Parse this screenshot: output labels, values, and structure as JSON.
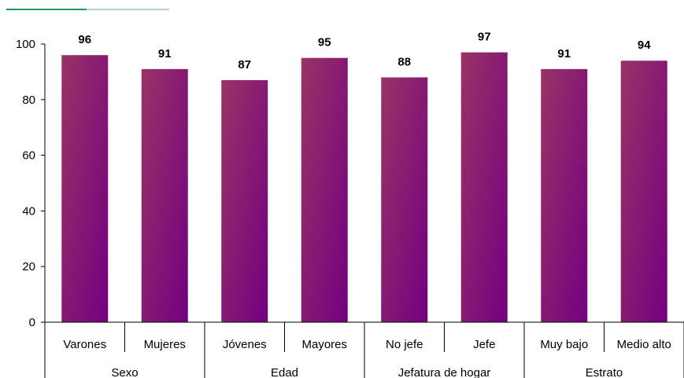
{
  "chart_data": {
    "type": "bar",
    "categories": [
      "Varones",
      "Mujeres",
      "Jóvenes",
      "Mayores",
      "No jefe",
      "Jefe",
      "Muy bajo",
      "Medio alto"
    ],
    "groups": [
      {
        "label": "Sexo",
        "count": 2
      },
      {
        "label": "Edad",
        "count": 2
      },
      {
        "label": "Jefatura de hogar",
        "count": 2
      },
      {
        "label": "Estrato",
        "count": 2
      }
    ],
    "values": [
      96,
      91,
      87,
      95,
      88,
      97,
      91,
      94
    ],
    "data_labels": [
      "96",
      "91",
      "87",
      "95",
      "88",
      "97",
      "91",
      "94"
    ],
    "yticks": [
      "0",
      "20",
      "40",
      "60",
      "80",
      "100"
    ],
    "ylim": [
      0,
      100
    ],
    "grid": false,
    "legend": "none",
    "colors": {
      "bar_start": "#993366",
      "bar_end": "#730080",
      "top_line_dark": "#1e9a5a",
      "top_line_light": "#b3d8bf",
      "axis": "#000000"
    }
  }
}
